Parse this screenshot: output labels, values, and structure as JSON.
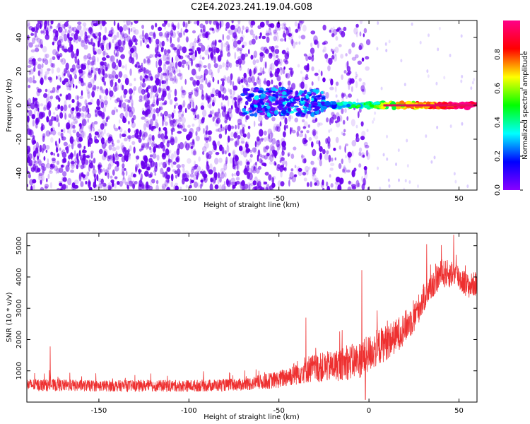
{
  "title": "C2E4.2023.241.19.04.G08",
  "colors": {
    "snr_line": "#ee3030",
    "text": "#000000",
    "speckle": "#6a00ee"
  },
  "chart_data": [
    {
      "type": "heatmap",
      "name": "spectrogram",
      "xlabel": "Height of straight line (km)",
      "ylabel": "Frequency (Hz)",
      "xlim": [
        -190,
        60
      ],
      "ylim": [
        -50,
        50
      ],
      "xticks": [
        -150,
        -100,
        -50,
        0,
        50
      ],
      "yticks": [
        -40,
        -20,
        0,
        20,
        40
      ],
      "description_data": {
        "noise_region_x": [
          -190,
          -45
        ],
        "transition_x": [
          -70,
          -25
        ],
        "carrier_start_x": -30,
        "carrier_frequency_hz": 0,
        "carrier_amplitude_range": [
          0.4,
          1.0
        ]
      },
      "colorbar": {
        "label": "Normalized spectral amplitude",
        "range": [
          0.0,
          1.0
        ],
        "ticks": [
          "0.0",
          "0.2",
          "0.4",
          "0.6",
          "0.8"
        ],
        "stops": [
          "#8a00ff",
          "#0000ff",
          "#00ffff",
          "#00ff00",
          "#ffff00",
          "#ff0000",
          "#ff0088"
        ]
      }
    },
    {
      "type": "line",
      "name": "snr",
      "xlabel": "Height of straight line (km)",
      "ylabel": "SNR (10 * v/v)",
      "xlim": [
        -190,
        60
      ],
      "ylim": [
        0,
        5400
      ],
      "xticks": [
        -150,
        -100,
        -50,
        0,
        50
      ],
      "yticks": [
        1000,
        2000,
        3000,
        4000,
        5000
      ],
      "trend": [
        {
          "x": -190,
          "mean": 550,
          "noise": 200
        },
        {
          "x": -150,
          "mean": 520,
          "noise": 180
        },
        {
          "x": -100,
          "mean": 520,
          "noise": 190
        },
        {
          "x": -70,
          "mean": 560,
          "noise": 200
        },
        {
          "x": -50,
          "mean": 720,
          "noise": 280
        },
        {
          "x": -35,
          "mean": 1050,
          "noise": 450
        },
        {
          "x": -20,
          "mean": 1150,
          "noise": 500
        },
        {
          "x": -5,
          "mean": 1350,
          "noise": 600
        },
        {
          "x": 5,
          "mean": 1750,
          "noise": 600
        },
        {
          "x": 15,
          "mean": 2100,
          "noise": 550
        },
        {
          "x": 25,
          "mean": 2700,
          "noise": 500
        },
        {
          "x": 32,
          "mean": 3500,
          "noise": 450
        },
        {
          "x": 40,
          "mean": 4100,
          "noise": 450
        },
        {
          "x": 48,
          "mean": 4100,
          "noise": 450
        },
        {
          "x": 55,
          "mean": 3700,
          "noise": 400
        },
        {
          "x": 60,
          "mean": 3800,
          "noise": 400
        }
      ],
      "spikes": [
        {
          "x": -177,
          "y": 1780
        },
        {
          "x": -35,
          "y": 2700
        },
        {
          "x": -4,
          "y": 4220
        },
        {
          "x": 32,
          "y": 5050
        },
        {
          "x": 47,
          "y": 5350
        }
      ]
    }
  ]
}
